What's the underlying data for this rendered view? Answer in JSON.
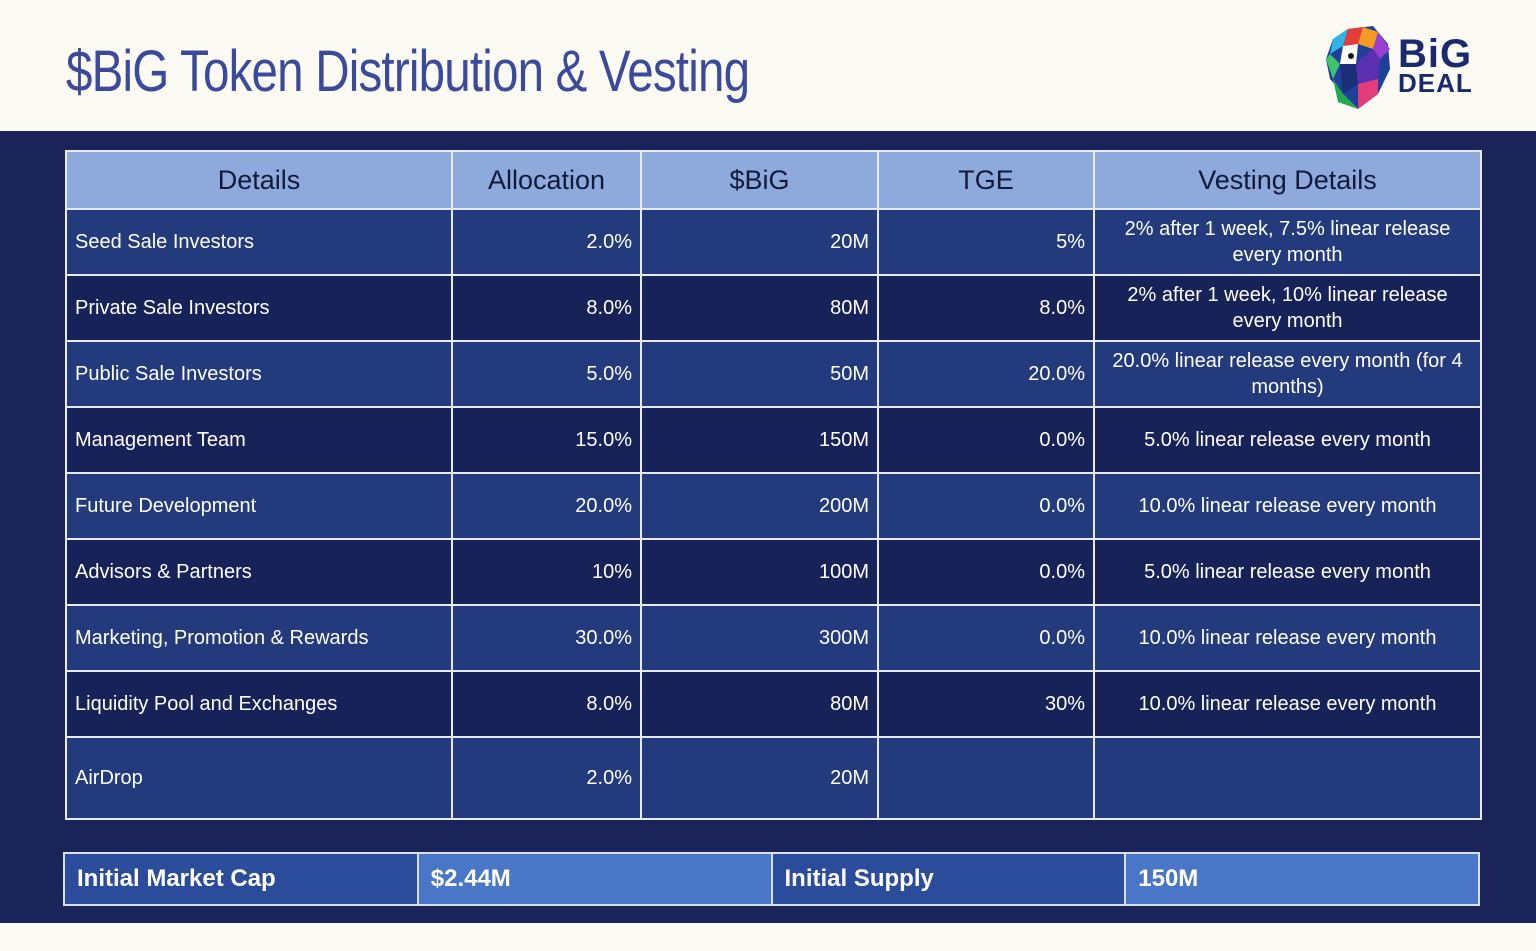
{
  "title": "$BiG Token Distribution & Vesting",
  "logo": {
    "line1": "BiG",
    "line2": "DEAL"
  },
  "table": {
    "headers": [
      "Details",
      "Allocation",
      "$BiG",
      "TGE",
      "Vesting Details"
    ],
    "rows": [
      [
        "Seed Sale Investors",
        "2.0%",
        "20M",
        "5%",
        "2% after 1 week, 7.5% linear release every month"
      ],
      [
        "Private Sale Investors",
        "8.0%",
        "80M",
        "8.0%",
        "2% after 1 week, 10% linear release every month"
      ],
      [
        "Public Sale Investors",
        "5.0%",
        "50M",
        "20.0%",
        "20.0% linear release every month (for 4 months)"
      ],
      [
        "Management Team",
        "15.0%",
        "150M",
        "0.0%",
        "5.0% linear release every month"
      ],
      [
        "Future Development",
        "20.0%",
        "200M",
        "0.0%",
        "10.0% linear release every month"
      ],
      [
        "Advisors & Partners",
        "10%",
        "100M",
        "0.0%",
        "5.0% linear release every month"
      ],
      [
        "Marketing, Promotion & Rewards",
        "30.0%",
        "300M",
        "0.0%",
        "10.0% linear release every month"
      ],
      [
        "Liquidity Pool and Exchanges",
        "8.0%",
        "80M",
        "30%",
        "10.0% linear release every month"
      ],
      [
        "AirDrop",
        "2.0%",
        "20M",
        "",
        ""
      ]
    ]
  },
  "summary": {
    "market_cap_label": "Initial Market Cap",
    "market_cap_value": "$2.44M",
    "supply_label": "Initial Supply",
    "supply_value": "150M"
  }
}
